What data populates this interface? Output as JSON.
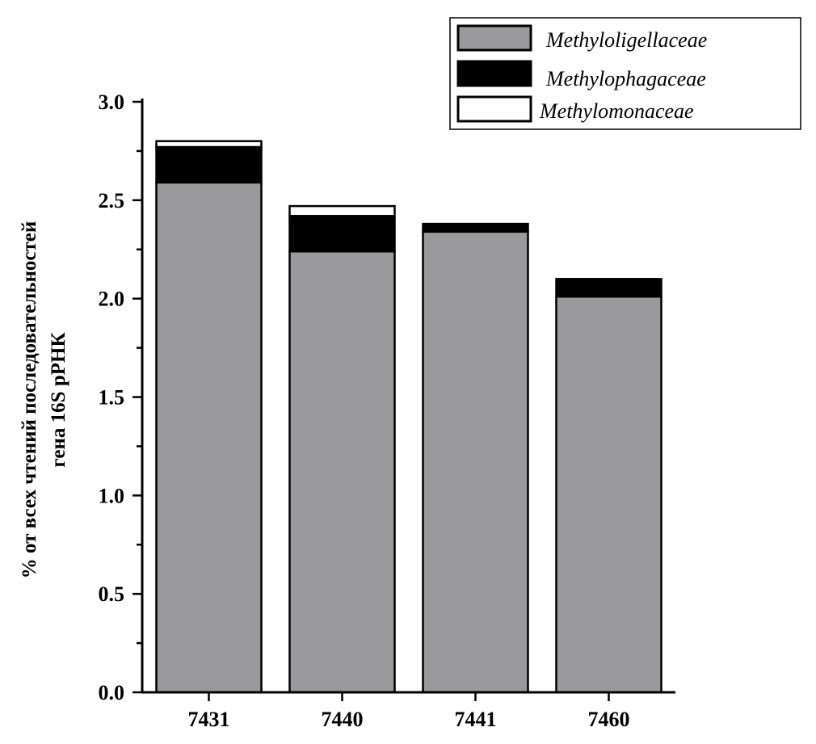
{
  "chart_data": {
    "type": "bar",
    "stacked": true,
    "categories": [
      "7431",
      "7440",
      "7441",
      "7460"
    ],
    "series": [
      {
        "name": "Methyloligellaceae",
        "values": [
          2.59,
          2.24,
          2.34,
          2.01
        ],
        "color": "#9a9a9c"
      },
      {
        "name": "Methylophagaceae",
        "values": [
          0.18,
          0.18,
          0.04,
          0.09
        ],
        "color": "#000000"
      },
      {
        "name": "Methylomonaceae",
        "values": [
          0.03,
          0.05,
          0.0,
          0.0
        ],
        "color": "#ffffff"
      }
    ],
    "ylabel_lines": [
      "% от всех чтений последовательностей",
      "гена 16S рРНК"
    ],
    "xlabel": "",
    "ylim": [
      0,
      3.0
    ],
    "yticks": [
      "0.0",
      "0.5",
      "1.0",
      "1.5",
      "2.0",
      "2.5",
      "3.0"
    ],
    "grid": false,
    "legend_position": "top-right"
  }
}
